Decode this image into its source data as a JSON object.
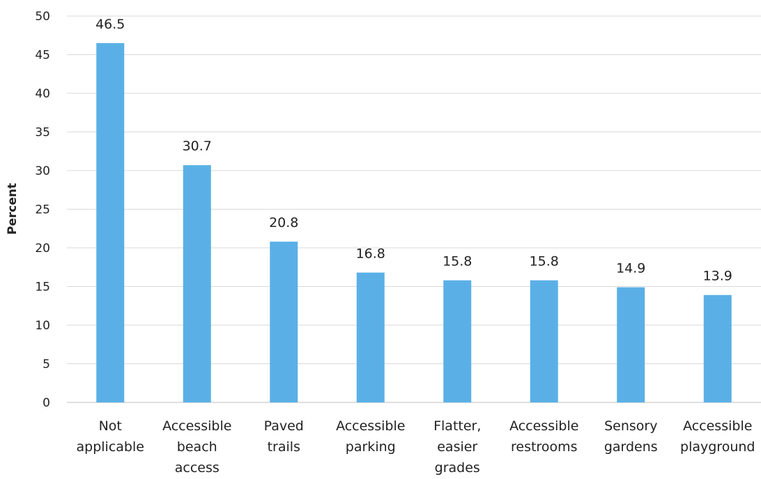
{
  "chart_data": {
    "type": "bar",
    "title": "",
    "xlabel": "",
    "ylabel": "Percent",
    "ylim": [
      0,
      50
    ],
    "ytick_step": 5,
    "grid": true,
    "bar_color": "#5ab0e6",
    "categories": [
      [
        "Not",
        "applicable"
      ],
      [
        "Accessible",
        "beach",
        "access"
      ],
      [
        "Paved",
        "trails"
      ],
      [
        "Accessible",
        "parking"
      ],
      [
        "Flatter,",
        "easier",
        "grades"
      ],
      [
        "Accessible",
        "restrooms"
      ],
      [
        "Sensory",
        "gardens"
      ],
      [
        "Accessible",
        "playground"
      ]
    ],
    "values": [
      46.5,
      30.7,
      20.8,
      16.8,
      15.8,
      15.8,
      14.9,
      13.9
    ]
  }
}
